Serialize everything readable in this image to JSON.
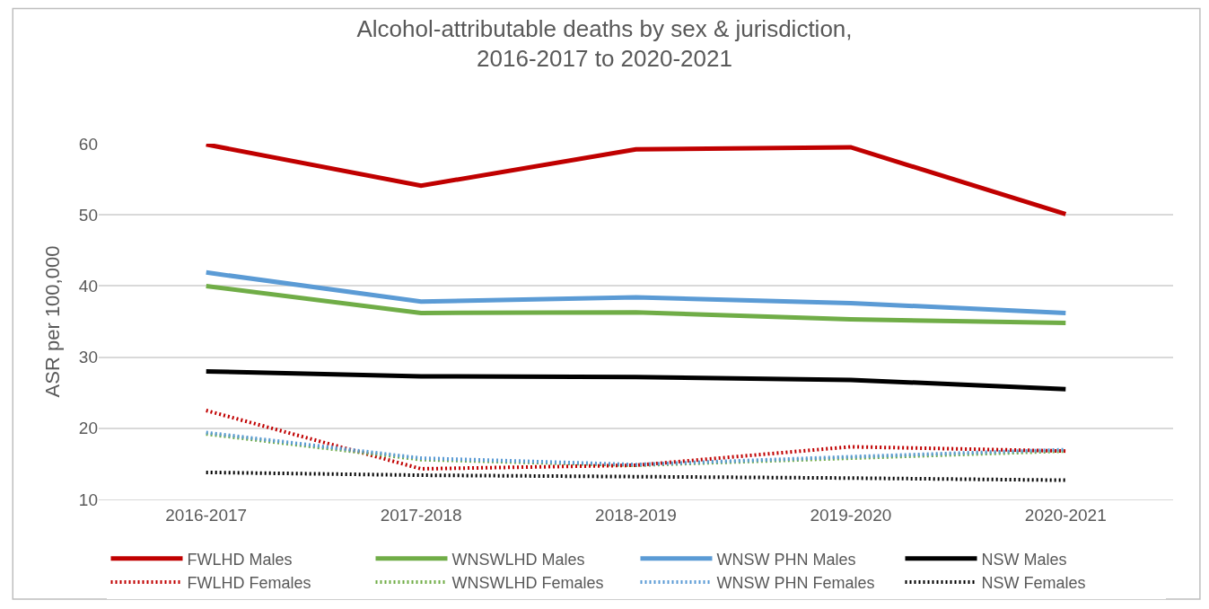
{
  "chart_data": {
    "type": "line",
    "title": "Alcohol-attributable deaths by sex & jurisdiction,\n2016-2017 to 2020-2021",
    "ylabel": "ASR per 100,000",
    "categories": [
      "2016-2017",
      "2017-2018",
      "2018-2019",
      "2019-2020",
      "2020-2021"
    ],
    "ylim": [
      10,
      60
    ],
    "yticks": [
      10,
      20,
      30,
      40,
      50,
      60
    ],
    "grid": "y",
    "legend": "bottom",
    "series": [
      {
        "name": "FWLHD Males",
        "color": "#c00000",
        "line_style": "solid",
        "values": [
          59.9,
          54.1,
          59.2,
          59.5,
          50.1
        ]
      },
      {
        "name": "WNSWLHD Males",
        "color": "#70ad47",
        "line_style": "solid",
        "values": [
          40.0,
          36.2,
          36.3,
          35.3,
          34.8
        ]
      },
      {
        "name": "WNSW PHN Males",
        "color": "#5b9bd5",
        "line_style": "solid",
        "values": [
          41.9,
          37.8,
          38.4,
          37.6,
          36.2
        ]
      },
      {
        "name": "NSW Males",
        "color": "#000000",
        "line_style": "solid",
        "values": [
          28.0,
          27.3,
          27.2,
          26.8,
          25.5
        ]
      },
      {
        "name": "FWLHD Females",
        "color": "#c00000",
        "line_style": "dotted",
        "values": [
          22.5,
          14.3,
          14.8,
          17.4,
          16.8
        ]
      },
      {
        "name": "WNSWLHD Females",
        "color": "#70ad47",
        "line_style": "dotted",
        "values": [
          19.2,
          15.6,
          14.8,
          15.8,
          16.8
        ]
      },
      {
        "name": "WNSW PHN Females",
        "color": "#5b9bd5",
        "line_style": "dotted",
        "values": [
          19.4,
          15.8,
          14.9,
          16.0,
          17.0
        ]
      },
      {
        "name": "NSW Females",
        "color": "#000000",
        "line_style": "dotted",
        "values": [
          13.8,
          13.4,
          13.2,
          13.0,
          12.7
        ]
      }
    ]
  }
}
